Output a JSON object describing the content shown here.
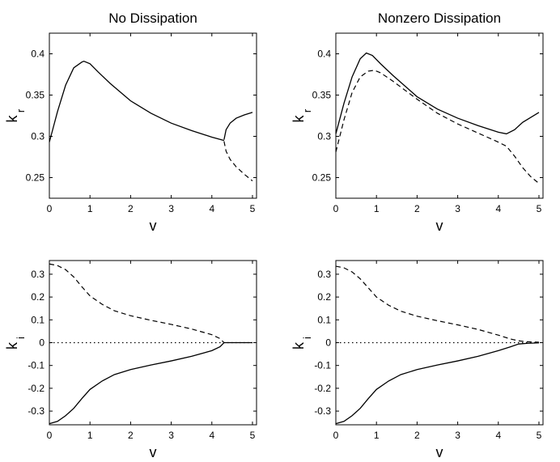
{
  "chart_data": [
    {
      "type": "line",
      "title": "No Dissipation",
      "xlabel": "v",
      "ylabel_main": "k",
      "ylabel_sub": "r",
      "xlim": [
        0,
        5.1
      ],
      "ylim": [
        0.225,
        0.425
      ],
      "xticks": [
        "0",
        "1",
        "2",
        "3",
        "4",
        "5"
      ],
      "yticks": [
        "0.25",
        "0.3",
        "0.35",
        "0.4"
      ],
      "series": [
        {
          "style": "solid",
          "x": [
            0,
            0.2,
            0.4,
            0.6,
            0.8,
            0.85,
            1.0,
            1.2,
            1.5,
            2.0,
            2.5,
            3.0,
            3.5,
            4.0,
            4.3
          ],
          "y": [
            0.293,
            0.33,
            0.362,
            0.383,
            0.39,
            0.391,
            0.388,
            0.378,
            0.364,
            0.343,
            0.328,
            0.316,
            0.307,
            0.299,
            0.295
          ]
        },
        {
          "style": "solid",
          "x": [
            4.3,
            4.35,
            4.45,
            4.6,
            4.8,
            5.0
          ],
          "y": [
            0.296,
            0.308,
            0.316,
            0.322,
            0.326,
            0.329
          ]
        },
        {
          "style": "dashed",
          "x": [
            4.3,
            4.35,
            4.45,
            4.6,
            4.8,
            5.0
          ],
          "y": [
            0.294,
            0.282,
            0.272,
            0.263,
            0.254,
            0.246
          ]
        }
      ]
    },
    {
      "type": "line",
      "title": "Nonzero Dissipation",
      "xlabel": "v",
      "ylabel_main": "k",
      "ylabel_sub": "r",
      "xlim": [
        0,
        5.1
      ],
      "ylim": [
        0.225,
        0.425
      ],
      "xticks": [
        "0",
        "1",
        "2",
        "3",
        "4",
        "5"
      ],
      "yticks": [
        "0.25",
        "0.3",
        "0.35",
        "0.4"
      ],
      "series": [
        {
          "style": "solid",
          "x": [
            0,
            0.2,
            0.4,
            0.6,
            0.75,
            0.9,
            1.1,
            1.4,
            2.0,
            2.5,
            3.0,
            3.5,
            4.0,
            4.2,
            4.4,
            4.6,
            4.8,
            5.0
          ],
          "y": [
            0.303,
            0.34,
            0.372,
            0.394,
            0.401,
            0.398,
            0.388,
            0.374,
            0.348,
            0.333,
            0.322,
            0.313,
            0.305,
            0.303,
            0.308,
            0.317,
            0.323,
            0.329
          ]
        },
        {
          "style": "dashed",
          "x": [
            0,
            0.2,
            0.4,
            0.6,
            0.8,
            0.95,
            1.1,
            1.4,
            2.0,
            2.5,
            3.0,
            3.5,
            4.0,
            4.2,
            4.4,
            4.6,
            4.8,
            5.0
          ],
          "y": [
            0.281,
            0.32,
            0.353,
            0.372,
            0.379,
            0.38,
            0.377,
            0.367,
            0.345,
            0.328,
            0.315,
            0.304,
            0.293,
            0.288,
            0.276,
            0.262,
            0.251,
            0.243
          ]
        }
      ]
    },
    {
      "type": "line",
      "title": "",
      "xlabel": "v",
      "ylabel_main": "k",
      "ylabel_sub": "i",
      "xlim": [
        0,
        5.1
      ],
      "ylim": [
        -0.36,
        0.36
      ],
      "xticks": [
        "0",
        "1",
        "2",
        "3",
        "4",
        "5"
      ],
      "yticks": [
        "-0.3",
        "-0.2",
        "-0.1",
        "0",
        "0.1",
        "0.2",
        "0.3"
      ],
      "series": [
        {
          "style": "dashed",
          "x": [
            0,
            0.2,
            0.4,
            0.6,
            0.8,
            1.0,
            1.3,
            1.6,
            2.0,
            2.5,
            3.0,
            3.5,
            4.0,
            4.2,
            4.3
          ],
          "y": [
            0.345,
            0.338,
            0.32,
            0.288,
            0.245,
            0.205,
            0.168,
            0.14,
            0.118,
            0.098,
            0.08,
            0.06,
            0.035,
            0.018,
            0.0
          ]
        },
        {
          "style": "solid",
          "x": [
            0,
            0.2,
            0.4,
            0.6,
            0.8,
            1.0,
            1.3,
            1.6,
            2.0,
            2.5,
            3.0,
            3.5,
            4.0,
            4.2,
            4.3,
            5.0
          ],
          "y": [
            -0.355,
            -0.345,
            -0.32,
            -0.288,
            -0.245,
            -0.205,
            -0.168,
            -0.14,
            -0.118,
            -0.098,
            -0.08,
            -0.06,
            -0.035,
            -0.018,
            0.0,
            0.0
          ]
        },
        {
          "style": "dotted",
          "x": [
            0,
            5.0
          ],
          "y": [
            0,
            0
          ]
        }
      ]
    },
    {
      "type": "line",
      "title": "",
      "xlabel": "v",
      "ylabel_main": "k",
      "ylabel_sub": "i",
      "xlim": [
        0,
        5.1
      ],
      "ylim": [
        -0.36,
        0.36
      ],
      "xticks": [
        "0",
        "1",
        "2",
        "3",
        "4",
        "5"
      ],
      "yticks": [
        "-0.3",
        "-0.2",
        "-0.1",
        "0",
        "0.1",
        "0.2",
        "0.3"
      ],
      "series": [
        {
          "style": "dashed",
          "x": [
            0,
            0.2,
            0.4,
            0.6,
            0.8,
            1.0,
            1.3,
            1.6,
            2.0,
            2.5,
            3.0,
            3.5,
            4.0,
            4.3,
            4.5,
            4.7,
            5.0
          ],
          "y": [
            0.335,
            0.328,
            0.31,
            0.28,
            0.24,
            0.2,
            0.164,
            0.138,
            0.116,
            0.096,
            0.078,
            0.058,
            0.033,
            0.016,
            0.008,
            0.004,
            0.002
          ]
        },
        {
          "style": "solid",
          "x": [
            0,
            0.2,
            0.4,
            0.6,
            0.8,
            1.0,
            1.3,
            1.6,
            2.0,
            2.5,
            3.0,
            3.5,
            4.0,
            4.3,
            4.5,
            4.7,
            5.0
          ],
          "y": [
            -0.355,
            -0.345,
            -0.32,
            -0.288,
            -0.245,
            -0.205,
            -0.168,
            -0.14,
            -0.118,
            -0.098,
            -0.08,
            -0.06,
            -0.035,
            -0.018,
            -0.006,
            -0.003,
            -0.001
          ]
        },
        {
          "style": "dotted",
          "x": [
            0,
            5.0
          ],
          "y": [
            0,
            0
          ]
        }
      ]
    }
  ]
}
